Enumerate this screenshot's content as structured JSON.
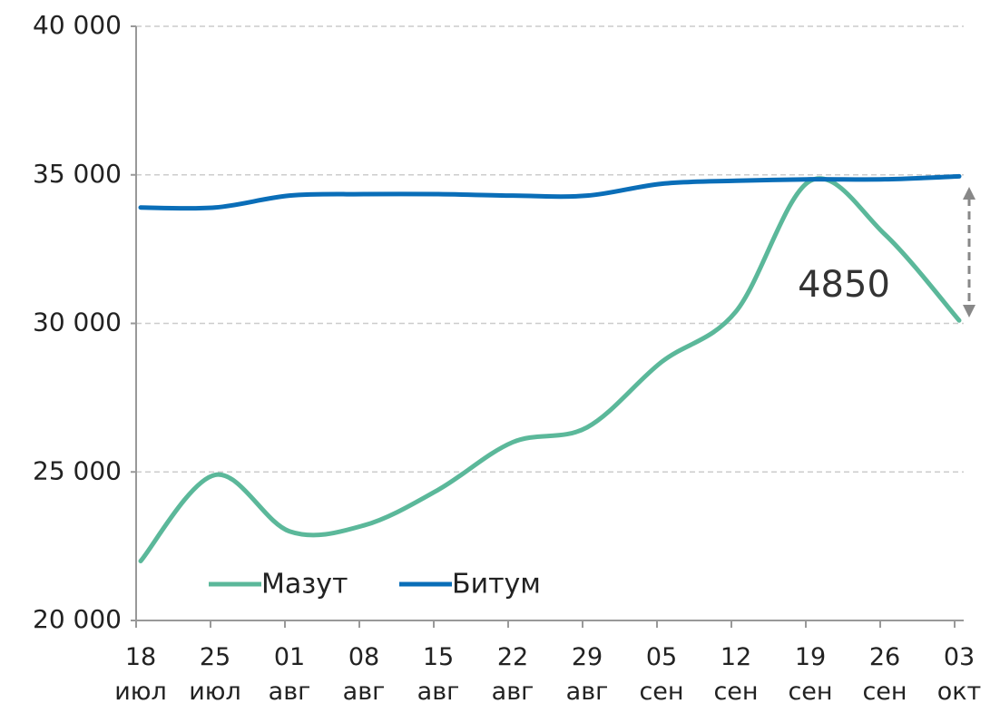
{
  "chart_data": {
    "type": "line",
    "categories": [
      "18 июл",
      "25 июл",
      "01 авг",
      "08 авг",
      "15 авг",
      "22 авг",
      "29 авг",
      "05 сен",
      "12 сен",
      "19 сен",
      "26 сен",
      "03 окт"
    ],
    "series": [
      {
        "name": "Мазут",
        "color": "#5bb89a",
        "values": [
          22000,
          24900,
          23000,
          23200,
          24400,
          26000,
          26500,
          28700,
          30400,
          34800,
          33000,
          30100
        ]
      },
      {
        "name": "Битум",
        "color": "#0a6eb8",
        "values": [
          33900,
          33900,
          34300,
          34350,
          34350,
          34300,
          34300,
          34700,
          34800,
          34850,
          34850,
          34950
        ]
      }
    ],
    "ylim": [
      20000,
      40000
    ],
    "yticks": [
      {
        "value": 20000,
        "label": "20 000"
      },
      {
        "value": 25000,
        "label": "25 000"
      },
      {
        "value": 30000,
        "label": "30 000"
      },
      {
        "value": 35000,
        "label": "35 000"
      },
      {
        "value": 40000,
        "label": "40 000"
      }
    ],
    "grid": true,
    "annotation": "4850"
  }
}
